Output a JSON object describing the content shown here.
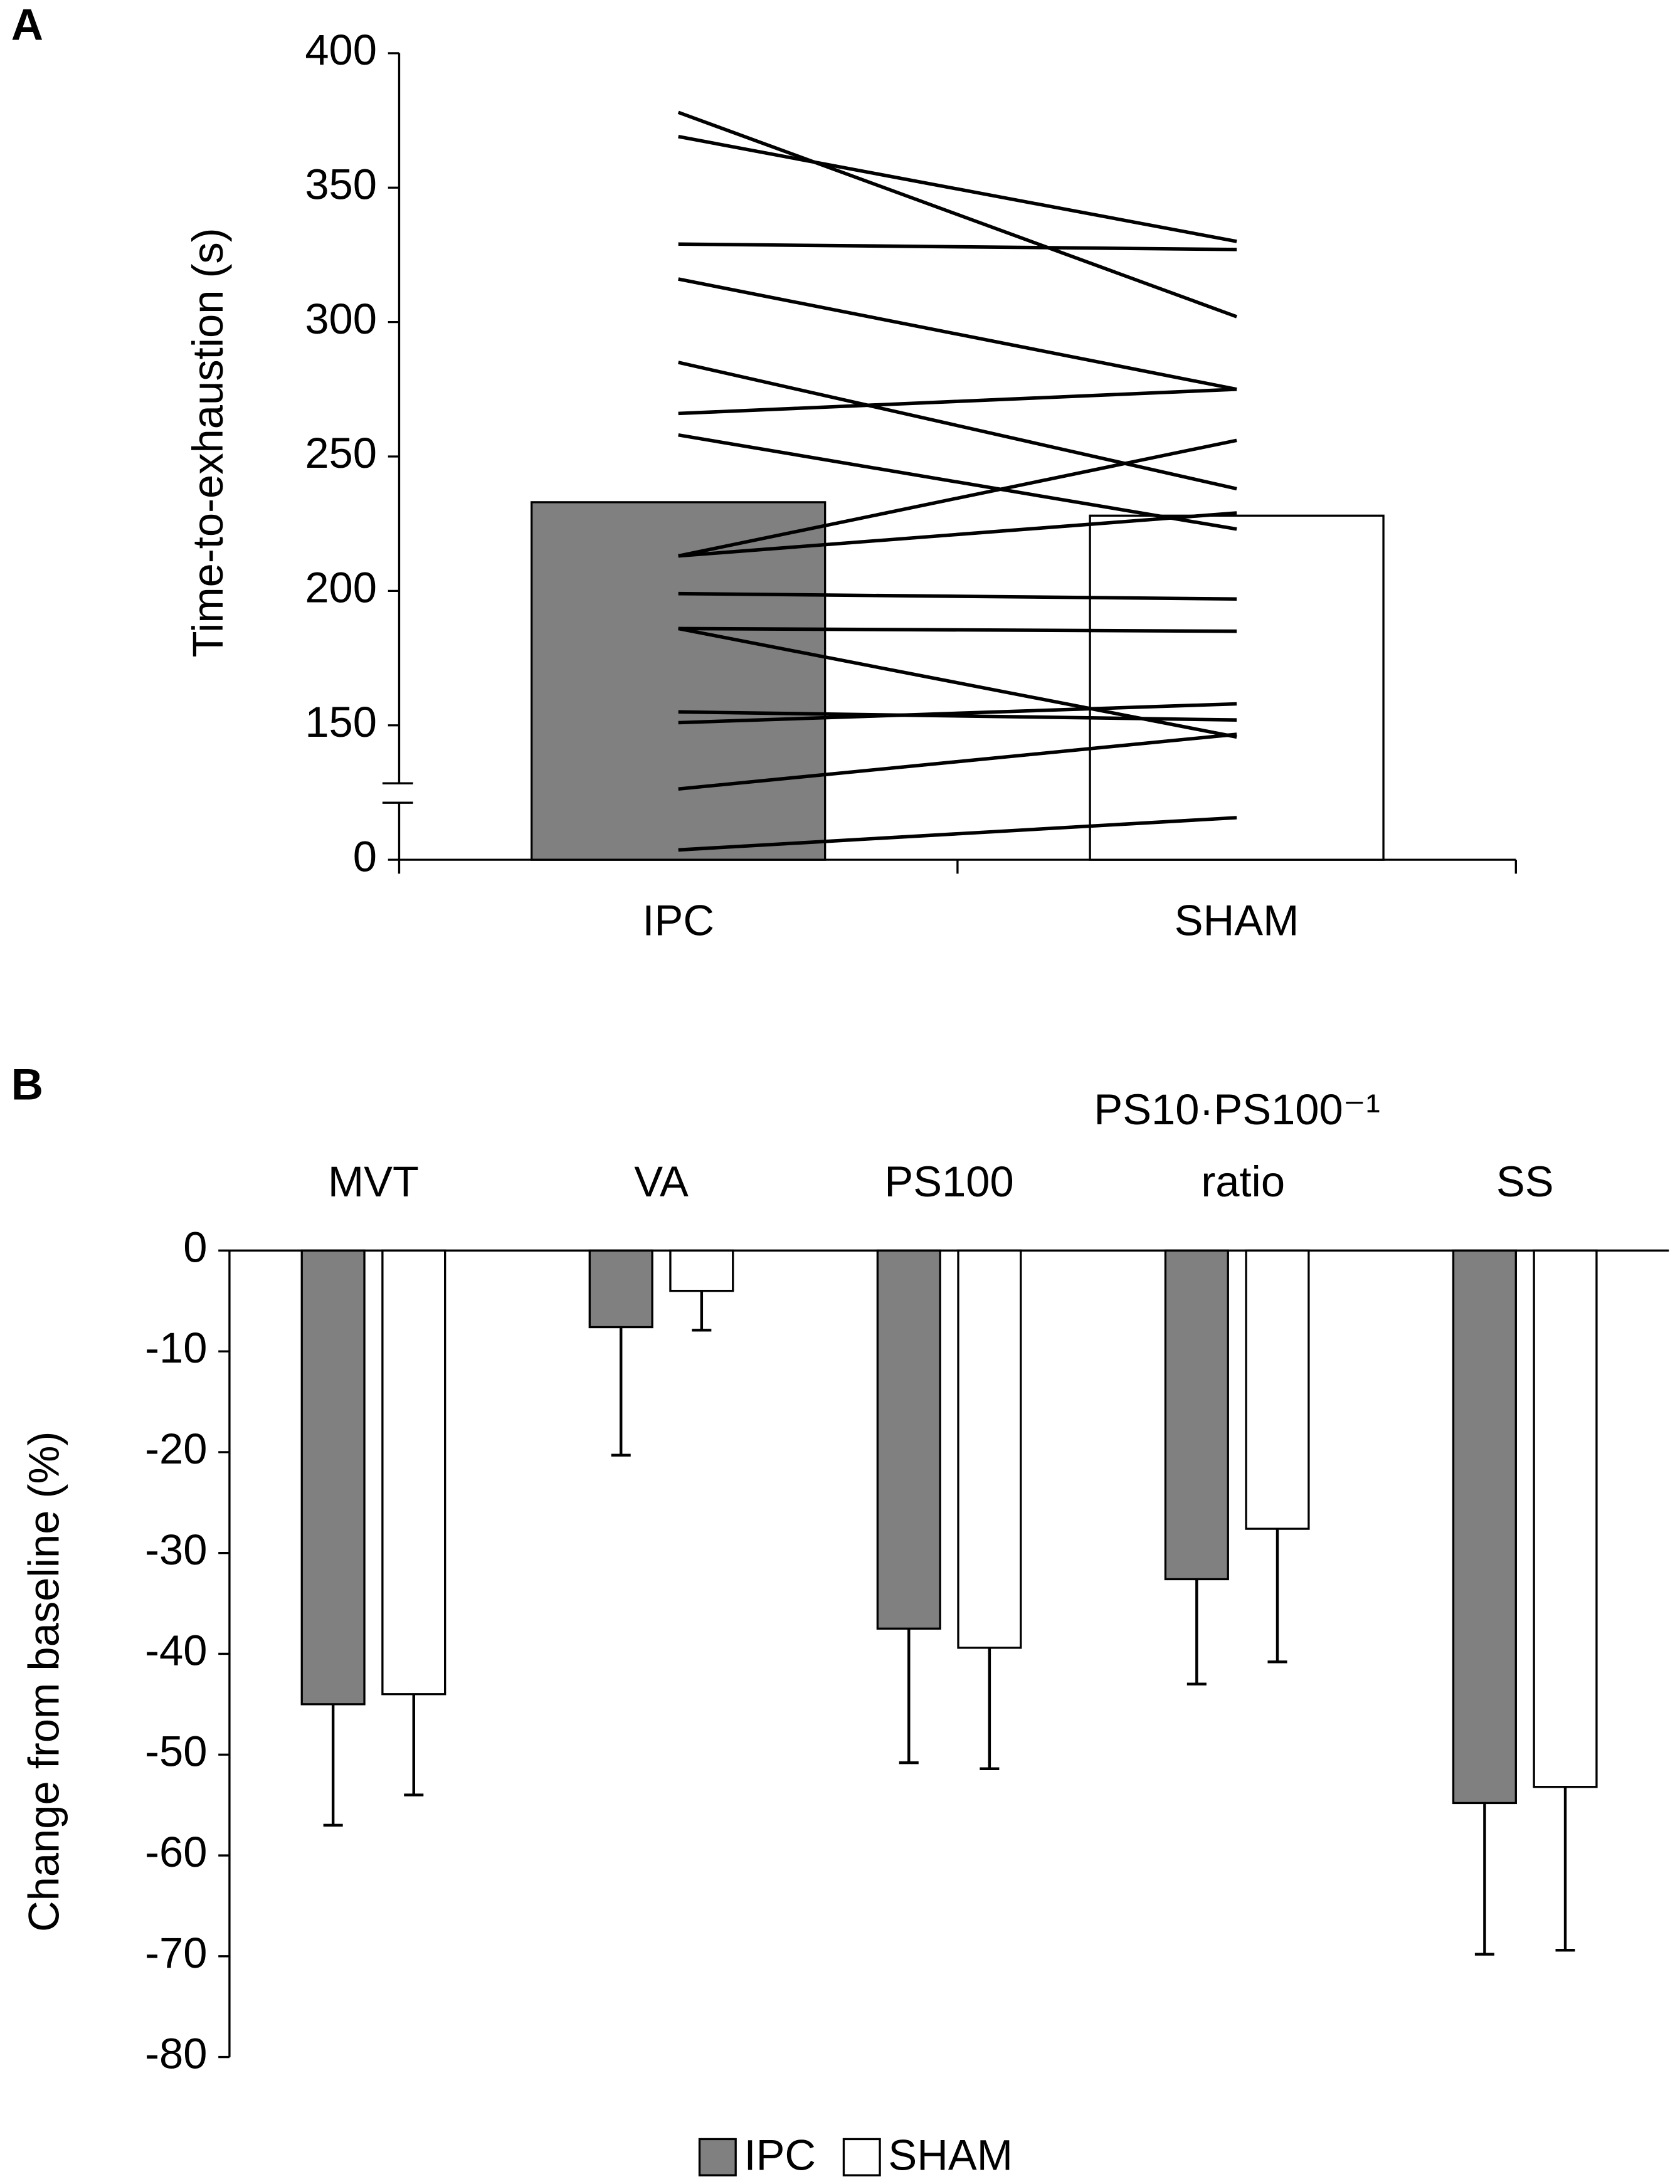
{
  "chart_data": [
    {
      "type": "paired",
      "panel": "A",
      "y_label": "Time-to-exhaustion (s)",
      "categories": [
        "IPC",
        "SHAM"
      ],
      "values": [
        233,
        228
      ],
      "colors": [
        "#808080",
        "#ffffff"
      ],
      "pairs": [
        [
          378,
          302
        ],
        [
          369,
          330
        ],
        [
          329,
          327
        ],
        [
          316,
          275
        ],
        [
          285,
          238
        ],
        [
          266,
          275
        ],
        [
          258,
          223
        ],
        [
          213,
          256
        ],
        [
          213,
          229
        ],
        [
          199,
          197
        ],
        [
          186,
          185
        ],
        [
          186,
          137
        ],
        [
          155,
          152
        ],
        [
          151,
          158
        ],
        [
          79,
          140
        ],
        [
          11,
          47
        ]
      ],
      "ylim": [
        0,
        400
      ],
      "yticks": [
        0,
        150,
        200,
        250,
        300,
        350,
        400
      ],
      "axis_break": true
    },
    {
      "type": "bar",
      "panel": "B",
      "y_label": "Change from baseline (%)",
      "categories": [
        "MVT",
        "VA",
        "PS100",
        "PS10·PS100⁻¹ ratio",
        "SS"
      ],
      "series": [
        {
          "name": "IPC",
          "color": "#808080",
          "values": [
            -45,
            -7.6,
            -37.5,
            -32.6,
            -54.8
          ],
          "errors": [
            12,
            12.7,
            13.3,
            10.4,
            15
          ]
        },
        {
          "name": "SHAM",
          "color": "#ffffff",
          "values": [
            -44,
            -4,
            -39.4,
            -27.6,
            -53.2
          ],
          "errors": [
            10,
            3.9,
            12,
            13.2,
            16.2
          ]
        }
      ],
      "ylim": [
        -80,
        0
      ],
      "yticks": [
        -80,
        -70,
        -60,
        -50,
        -40,
        -30,
        -20,
        -10,
        0
      ],
      "legend": "bottom"
    }
  ]
}
